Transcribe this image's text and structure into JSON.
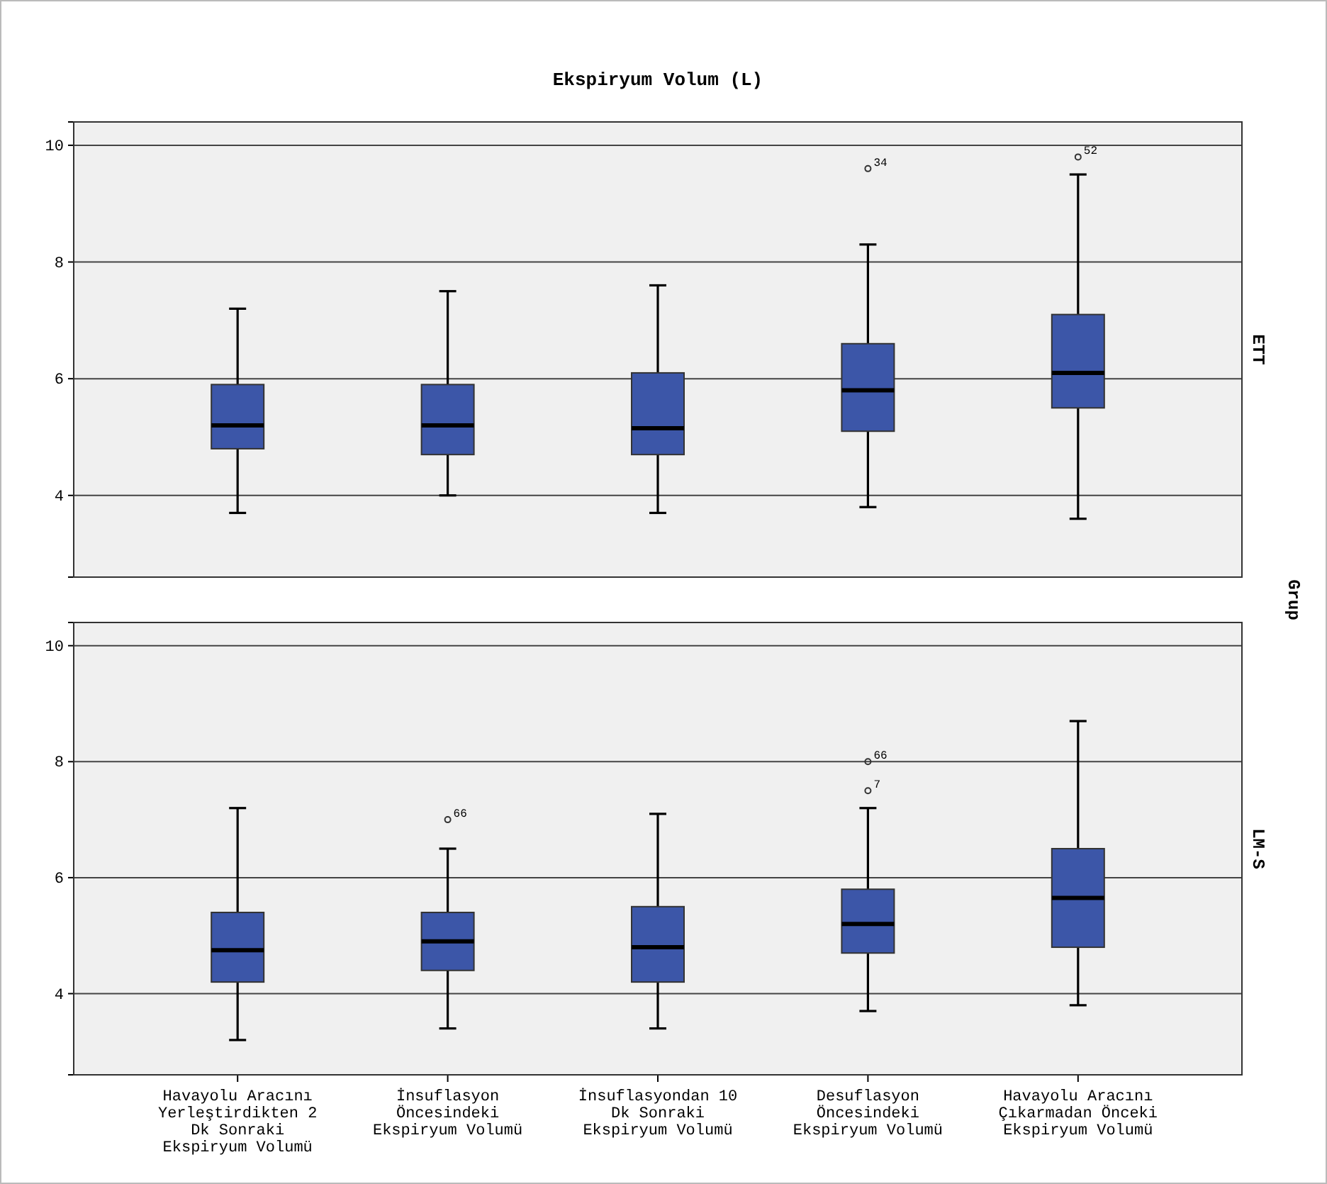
{
  "chart_data": [
    {
      "type": "box",
      "title": "Ekspiryum Volum (L)",
      "y2label": "ETT",
      "series": [
        {
          "color": "#3c56a8",
          "boxes": [
            {
              "low": 3.7,
              "q1": 4.8,
              "median": 5.2,
              "q3": 5.9,
              "high": 7.2
            },
            {
              "low": 4.0,
              "q1": 4.7,
              "median": 5.2,
              "q3": 5.9,
              "high": 7.5
            },
            {
              "low": 3.7,
              "q1": 4.7,
              "median": 5.15,
              "q3": 6.1,
              "high": 7.6
            },
            {
              "low": 3.8,
              "q1": 5.1,
              "median": 5.8,
              "q3": 6.6,
              "high": 8.3,
              "outliers": [
                9.6
              ]
            },
            {
              "low": 3.6,
              "q1": 5.5,
              "median": 6.1,
              "q3": 7.1,
              "high": 9.5,
              "outliers": [
                9.8
              ]
            }
          ]
        }
      ],
      "ylim": [
        2.6,
        10.4
      ],
      "yticks": [
        4,
        6,
        8,
        10
      ],
      "grid": "y",
      "tick_labels": "y",
      "annotations": [
        "34",
        "52",
        "Grup"
      ]
    },
    {
      "type": "box",
      "y2label": "LM-S",
      "categories": [
        "Havayolu Aracını Yerleştirdikten 2 Dk Sonraki Ekspiryum Volumü",
        "İnsuflasyon Öncesindeki Ekspiryum Volumü",
        "İnsuflasyondan 10 Dk Sonraki Ekspiryum Volumü",
        "Desuflasyon Öncesindeki Ekspiryum Volumü",
        "Havayolu Aracını Çıkarmadan Önceki Ekspiryum Volumü"
      ],
      "series": [
        {
          "color": "#3c56a8",
          "boxes": [
            {
              "low": 3.2,
              "q1": 4.2,
              "median": 4.75,
              "q3": 5.4,
              "high": 7.2
            },
            {
              "low": 3.4,
              "q1": 4.4,
              "median": 4.9,
              "q3": 5.4,
              "high": 6.5,
              "outliers": [
                7.0
              ]
            },
            {
              "low": 3.4,
              "q1": 4.2,
              "median": 4.8,
              "q3": 5.5,
              "high": 7.1
            },
            {
              "low": 3.7,
              "q1": 4.7,
              "median": 5.2,
              "q3": 5.8,
              "high": 7.2,
              "outliers": [
                7.5,
                8.0
              ]
            },
            {
              "low": 3.8,
              "q1": 4.8,
              "median": 5.65,
              "q3": 6.5,
              "high": 8.7
            }
          ]
        }
      ],
      "ylim": [
        2.6,
        10.4
      ],
      "yticks": [
        4,
        6,
        8,
        10
      ],
      "grid": "y",
      "annotations": [
        "66",
        "7",
        "66"
      ]
    }
  ]
}
